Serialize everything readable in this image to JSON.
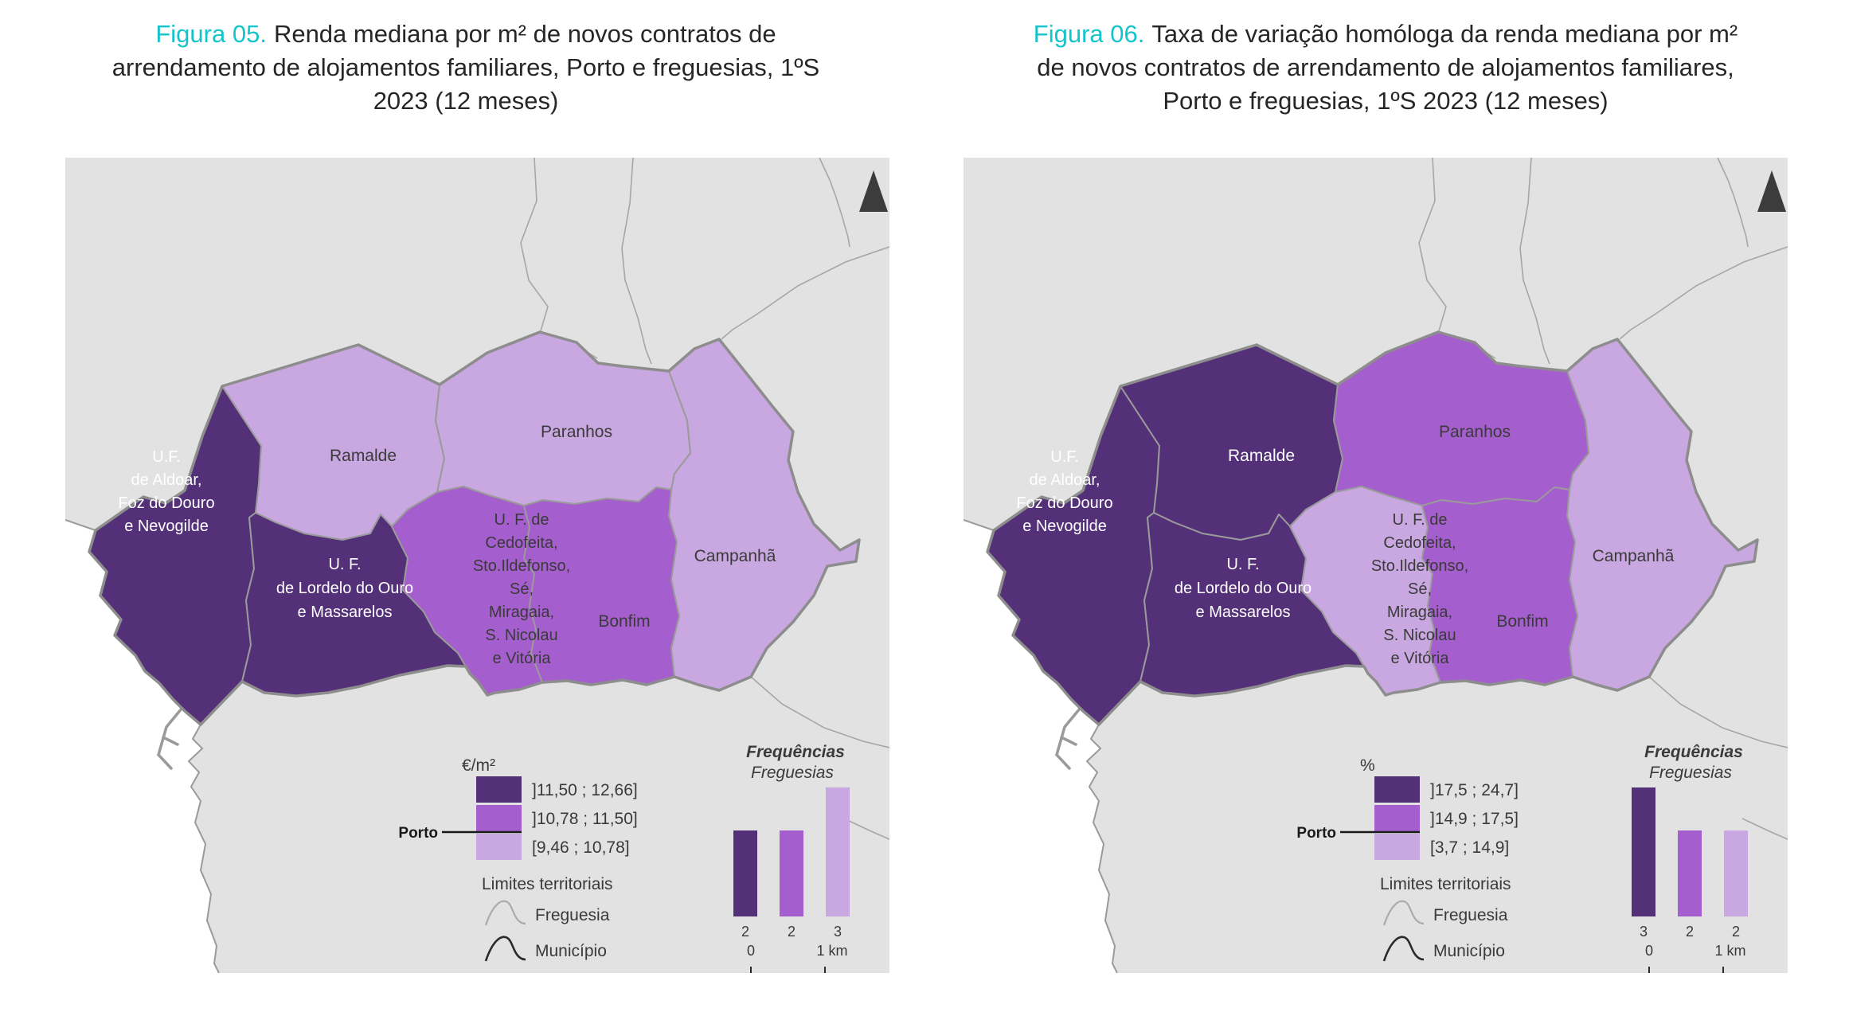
{
  "colors": {
    "dark": "#533078",
    "medium": "#a55ecd",
    "light": "#c9a8e1",
    "land": "#e2e2e2",
    "ocean": "#ffffff",
    "boundary": "#9a9a9a",
    "municipal": "#8d8d8d",
    "thin_line": "#a6a6a6",
    "text_dark": "#3a3a3a",
    "title_accent": "#13c5cb"
  },
  "icons": {
    "north_arrow": "north-arrow-triangle",
    "freguesia_symbol": "thin-gray-boundary-line",
    "municipio_symbol": "thick-black-boundary-line"
  },
  "regions": [
    {
      "id": "aldoar",
      "name": "U.F. de Aldoar, Foz do Douro e Nevogilde",
      "label_lines": [
        "U.F.",
        "de Aldoar,",
        "Foz do Douro",
        "e Nevogilde"
      ]
    },
    {
      "id": "ramalde",
      "name": "Ramalde",
      "label_lines": [
        "Ramalde"
      ]
    },
    {
      "id": "paranhos",
      "name": "Paranhos",
      "label_lines": [
        "Paranhos"
      ]
    },
    {
      "id": "lordelo",
      "name": "U. F. de Lordelo do Ouro e Massarelos",
      "label_lines": [
        "U. F.",
        "de Lordelo do Ouro",
        "e Massarelos"
      ]
    },
    {
      "id": "cedofeita",
      "name": "U. F. de Cedofeita, Sto.Ildefonso, Sé, Miragaia, S. Nicolau e Vitória",
      "label_lines": [
        "U. F. de",
        "Cedofeita,",
        "Sto.Ildefonso,",
        "Sé,",
        "Miragaia,",
        "S. Nicolau",
        "e Vitória"
      ]
    },
    {
      "id": "bonfim",
      "name": "Bonfim",
      "label_lines": [
        "Bonfim"
      ]
    },
    {
      "id": "campanha",
      "name": "Campanhã",
      "label_lines": [
        "Campanhã"
      ]
    }
  ],
  "figures": [
    {
      "id": "fig05",
      "title": {
        "prefix": "Figura 05.",
        "line1_rest": "Renda mediana por m² de novos contratos de",
        "line2": "arrendamento de alojamentos familiares, Porto e freguesias, 1ºS",
        "line3": "2023 (12 meses)"
      },
      "legend": {
        "unit": "€/m²",
        "classes": [
          "]11,50 ; 12,66]",
          "]10,78 ; 11,50]",
          "[9,46 ; 10,78]"
        ],
        "porto_label": "Porto",
        "limites_label": "Limites territoriais",
        "freguesia_label": "Freguesia",
        "municipio_label": "Município"
      },
      "frequencies": {
        "title": "Frequências",
        "subtitle": "Freguesias",
        "values": [
          2,
          2,
          3
        ]
      },
      "scale": {
        "start": "0",
        "end": "1 km"
      },
      "region_classes": {
        "aldoar": 0,
        "ramalde": 2,
        "paranhos": 2,
        "lordelo": 0,
        "cedofeita": 1,
        "bonfim": 1,
        "campanha": 2
      }
    },
    {
      "id": "fig06",
      "title": {
        "prefix": "Figura 06.",
        "line1_rest": "Taxa de variação homóloga da renda mediana por m²",
        "line2": "de novos contratos de arrendamento de alojamentos familiares,",
        "line3": "Porto e freguesias, 1ºS 2023 (12 meses)"
      },
      "legend": {
        "unit": "%",
        "classes": [
          "]17,5 ; 24,7]",
          "]14,9 ; 17,5]",
          "[3,7 ; 14,9]"
        ],
        "porto_label": "Porto",
        "limites_label": "Limites territoriais",
        "freguesia_label": "Freguesia",
        "municipio_label": "Município"
      },
      "frequencies": {
        "title": "Frequências",
        "subtitle": "Freguesias",
        "values": [
          3,
          2,
          2
        ]
      },
      "scale": {
        "start": "0",
        "end": "1 km"
      },
      "region_classes": {
        "aldoar": 0,
        "ramalde": 0,
        "paranhos": 1,
        "lordelo": 0,
        "cedofeita": 2,
        "bonfim": 1,
        "campanha": 2
      }
    }
  ],
  "chart_data": [
    {
      "type": "choropleth_map",
      "title": "Figura 05. Renda mediana por m² de novos contratos de arrendamento de alojamentos familiares, Porto e freguesias, 1ºS 2023 (12 meses)",
      "unit": "€/m²",
      "class_breaks": [
        "]11,50 ; 12,66]",
        "]10,78 ; 11,50]",
        "[9,46 ; 10,78]"
      ],
      "region_classes": {
        "U.F. de Aldoar, Foz do Douro e Nevogilde": "]11,50 ; 12,66]",
        "U. F. de Lordelo do Ouro e Massarelos": "]11,50 ; 12,66]",
        "U. F. de Cedofeita, Sto.Ildefonso, Sé, Miragaia, S. Nicolau e Vitória": "]10,78 ; 11,50]",
        "Bonfim": "]10,78 ; 11,50]",
        "Ramalde": "[9,46 ; 10,78]",
        "Paranhos": "[9,46 ; 10,78]",
        "Campanhã": "[9,46 ; 10,78]"
      },
      "frequencies": {
        "type": "bar",
        "categories": [
          "]11,50 ; 12,66]",
          "]10,78 ; 11,50]",
          "[9,46 ; 10,78]"
        ],
        "values": [
          2,
          2,
          3
        ],
        "title": "Frequências Freguesias"
      },
      "porto_marker": "between classes ]10,78 ; 11,50] and [9,46 ; 10,78]",
      "scale_bar": "0 to 1 km",
      "legend_position": "bottom"
    },
    {
      "type": "choropleth_map",
      "title": "Figura 06. Taxa de variação homóloga da renda mediana por m² de novos contratos de arrendamento de alojamentos familiares, Porto e freguesias, 1ºS 2023 (12 meses)",
      "unit": "%",
      "class_breaks": [
        "]17,5 ; 24,7]",
        "]14,9 ; 17,5]",
        "[3,7 ; 14,9]"
      ],
      "region_classes": {
        "U.F. de Aldoar, Foz do Douro e Nevogilde": "]17,5 ; 24,7]",
        "Ramalde": "]17,5 ; 24,7]",
        "U. F. de Lordelo do Ouro e Massarelos": "]17,5 ; 24,7]",
        "Paranhos": "]14,9 ; 17,5]",
        "Bonfim": "]14,9 ; 17,5]",
        "U. F. de Cedofeita, Sto.Ildefonso, Sé, Miragaia, S. Nicolau e Vitória": "[3,7 ; 14,9]",
        "Campanhã": "[3,7 ; 14,9]"
      },
      "frequencies": {
        "type": "bar",
        "categories": [
          "]17,5 ; 24,7]",
          "]14,9 ; 17,5]",
          "[3,7 ; 14,9]"
        ],
        "values": [
          3,
          2,
          2
        ],
        "title": "Frequências Freguesias"
      },
      "porto_marker": "between classes ]14,9 ; 17,5] and [3,7 ; 14,9]",
      "scale_bar": "0 to 1 km",
      "legend_position": "bottom"
    }
  ]
}
